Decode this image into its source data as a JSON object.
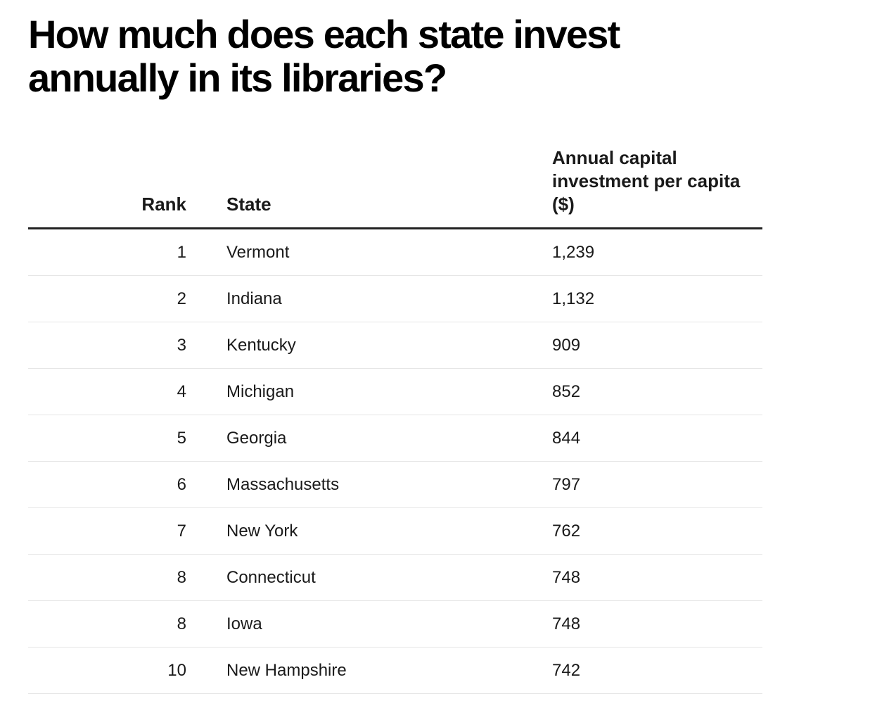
{
  "title": "How much does each state invest annually in its libraries?",
  "table": {
    "headers": {
      "rank": "Rank",
      "state": "State",
      "value": "Annual capital investment per capita ($)"
    },
    "rows": [
      {
        "rank": "1",
        "state": "Vermont",
        "value": "1,239"
      },
      {
        "rank": "2",
        "state": "Indiana",
        "value": "1,132"
      },
      {
        "rank": "3",
        "state": "Kentucky",
        "value": "909"
      },
      {
        "rank": "4",
        "state": "Michigan",
        "value": "852"
      },
      {
        "rank": "5",
        "state": "Georgia",
        "value": "844"
      },
      {
        "rank": "6",
        "state": "Massachusetts",
        "value": "797"
      },
      {
        "rank": "7",
        "state": "New York",
        "value": "762"
      },
      {
        "rank": "8",
        "state": "Connecticut",
        "value": "748"
      },
      {
        "rank": "8",
        "state": "Iowa",
        "value": "748"
      },
      {
        "rank": "10",
        "state": "New Hampshire",
        "value": "742"
      }
    ]
  },
  "chart_data": {
    "type": "table",
    "title": "How much does each state invest annually in its libraries?",
    "columns": [
      "Rank",
      "State",
      "Annual capital investment per capita ($)"
    ],
    "categories": [
      "Vermont",
      "Indiana",
      "Kentucky",
      "Michigan",
      "Georgia",
      "Massachusetts",
      "New York",
      "Connecticut",
      "Iowa",
      "New Hampshire"
    ],
    "ranks": [
      1,
      2,
      3,
      4,
      5,
      6,
      7,
      8,
      8,
      10
    ],
    "values": [
      1239,
      1132,
      909,
      852,
      844,
      797,
      762,
      748,
      748,
      742
    ]
  },
  "colors": {
    "text": "#1a1a1a",
    "title": "#000000",
    "header_rule": "#222222",
    "row_rule": "#e6e6e6",
    "background": "#ffffff"
  }
}
